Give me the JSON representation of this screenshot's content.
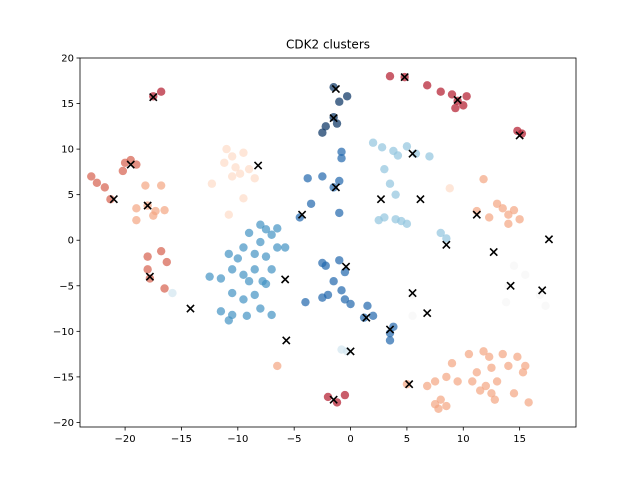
{
  "chart_data": {
    "type": "scatter",
    "title": "CDK2 clusters",
    "xlabel": "",
    "ylabel": "",
    "xlim": [
      -24,
      20
    ],
    "ylim": [
      -20.5,
      20
    ],
    "x_ticks": [
      -20,
      -15,
      -10,
      -5,
      0,
      5,
      10,
      15
    ],
    "y_ticks": [
      -20,
      -15,
      -10,
      -5,
      0,
      5,
      10,
      15,
      20
    ],
    "grid": false,
    "legend": "none",
    "point_alpha": 0.7,
    "points": [
      {
        "x": -23,
        "y": 7.0,
        "color": "#d6604d"
      },
      {
        "x": -22.5,
        "y": 6.3,
        "color": "#d6604d"
      },
      {
        "x": -21.8,
        "y": 5.8,
        "color": "#d6604d"
      },
      {
        "x": -21.3,
        "y": 4.5,
        "color": "#d6604d"
      },
      {
        "x": -20.2,
        "y": 7.6,
        "color": "#d6604d"
      },
      {
        "x": -20.0,
        "y": 8.5,
        "color": "#d6604d"
      },
      {
        "x": -19.5,
        "y": 8.8,
        "color": "#d6604d"
      },
      {
        "x": -19.0,
        "y": 8.3,
        "color": "#d6604d"
      },
      {
        "x": -19.0,
        "y": 3.5,
        "color": "#f4a582"
      },
      {
        "x": -19.0,
        "y": 2.2,
        "color": "#f4a582"
      },
      {
        "x": -18.2,
        "y": 6.0,
        "color": "#f4a582"
      },
      {
        "x": -18.0,
        "y": 3.8,
        "color": "#f4a582"
      },
      {
        "x": -17.5,
        "y": 2.7,
        "color": "#f4a582"
      },
      {
        "x": -17.3,
        "y": 3.2,
        "color": "#f4a582"
      },
      {
        "x": -16.8,
        "y": 6.0,
        "color": "#f4a582"
      },
      {
        "x": -16.5,
        "y": 3.3,
        "color": "#f4a582"
      },
      {
        "x": -18.0,
        "y": -1.8,
        "color": "#d6604d"
      },
      {
        "x": -18.0,
        "y": -3.2,
        "color": "#d6604d"
      },
      {
        "x": -17.8,
        "y": -4.2,
        "color": "#d6604d"
      },
      {
        "x": -16.8,
        "y": -1.2,
        "color": "#d6604d"
      },
      {
        "x": -16.3,
        "y": -2.4,
        "color": "#d6604d"
      },
      {
        "x": -16.5,
        "y": -5.3,
        "color": "#d6604d"
      },
      {
        "x": -17.5,
        "y": 15.8,
        "color": "#b2182b"
      },
      {
        "x": -16.8,
        "y": 16.3,
        "color": "#b2182b"
      },
      {
        "x": -11.0,
        "y": 10.0,
        "color": "#fddbc7"
      },
      {
        "x": -10.5,
        "y": 9.2,
        "color": "#fddbc7"
      },
      {
        "x": -9.5,
        "y": 9.6,
        "color": "#fddbc7"
      },
      {
        "x": -11.2,
        "y": 8.5,
        "color": "#fddbc7"
      },
      {
        "x": -10.2,
        "y": 8.0,
        "color": "#fddbc7"
      },
      {
        "x": -9.8,
        "y": 7.3,
        "color": "#fddbc7"
      },
      {
        "x": -10.5,
        "y": 7.0,
        "color": "#fddbc7"
      },
      {
        "x": -12.3,
        "y": 6.2,
        "color": "#fddbc7"
      },
      {
        "x": -9.0,
        "y": 7.8,
        "color": "#fddbc7"
      },
      {
        "x": -8.5,
        "y": 6.8,
        "color": "#fddbc7"
      },
      {
        "x": -9.5,
        "y": 4.6,
        "color": "#fddbc7"
      },
      {
        "x": -10.8,
        "y": 2.8,
        "color": "#fddbc7"
      },
      {
        "x": -8.0,
        "y": 1.7,
        "color": "#4393c3"
      },
      {
        "x": -7.5,
        "y": 1.2,
        "color": "#4393c3"
      },
      {
        "x": -7.0,
        "y": 0.6,
        "color": "#4393c3"
      },
      {
        "x": -6.5,
        "y": 1.3,
        "color": "#4393c3"
      },
      {
        "x": -9.0,
        "y": 0.8,
        "color": "#4393c3"
      },
      {
        "x": -9.5,
        "y": -0.8,
        "color": "#4393c3"
      },
      {
        "x": -10.0,
        "y": -2.0,
        "color": "#4393c3"
      },
      {
        "x": -10.8,
        "y": -1.5,
        "color": "#4393c3"
      },
      {
        "x": -11.5,
        "y": -4.2,
        "color": "#4393c3"
      },
      {
        "x": -10.5,
        "y": -3.2,
        "color": "#4393c3"
      },
      {
        "x": -9.5,
        "y": -3.8,
        "color": "#4393c3"
      },
      {
        "x": -8.5,
        "y": -1.5,
        "color": "#4393c3"
      },
      {
        "x": -8.0,
        "y": -0.2,
        "color": "#4393c3"
      },
      {
        "x": -7.5,
        "y": -1.8,
        "color": "#4393c3"
      },
      {
        "x": -6.5,
        "y": -0.8,
        "color": "#4393c3"
      },
      {
        "x": -7.0,
        "y": -3.2,
        "color": "#4393c3"
      },
      {
        "x": -7.8,
        "y": -4.5,
        "color": "#4393c3"
      },
      {
        "x": -8.5,
        "y": -3.2,
        "color": "#4393c3"
      },
      {
        "x": -9.0,
        "y": -4.5,
        "color": "#4393c3"
      },
      {
        "x": -5.8,
        "y": -0.8,
        "color": "#4393c3"
      },
      {
        "x": -10.5,
        "y": -5.8,
        "color": "#4393c3"
      },
      {
        "x": -9.5,
        "y": -6.5,
        "color": "#4393c3"
      },
      {
        "x": -8.5,
        "y": -6.0,
        "color": "#4393c3"
      },
      {
        "x": -9.2,
        "y": -8.3,
        "color": "#4393c3"
      },
      {
        "x": -10.5,
        "y": -8.2,
        "color": "#4393c3"
      },
      {
        "x": -10.8,
        "y": -8.8,
        "color": "#4393c3"
      },
      {
        "x": -8.0,
        "y": -7.5,
        "color": "#4393c3"
      },
      {
        "x": -7.0,
        "y": -8.2,
        "color": "#4393c3"
      },
      {
        "x": -7.5,
        "y": -4.8,
        "color": "#4393c3"
      },
      {
        "x": -11.5,
        "y": -7.8,
        "color": "#4393c3"
      },
      {
        "x": -12.5,
        "y": -4.0,
        "color": "#4393c3"
      },
      {
        "x": -15.8,
        "y": -5.8,
        "color": "#d1e5f0"
      },
      {
        "x": -4.5,
        "y": 2.5,
        "color": "#2166ac"
      },
      {
        "x": -3.5,
        "y": 4.0,
        "color": "#2166ac"
      },
      {
        "x": -3.8,
        "y": 6.8,
        "color": "#2166ac"
      },
      {
        "x": -2.5,
        "y": 7.0,
        "color": "#2166ac"
      },
      {
        "x": -1.0,
        "y": 6.5,
        "color": "#2166ac"
      },
      {
        "x": -0.8,
        "y": 9.7,
        "color": "#2166ac"
      },
      {
        "x": -0.8,
        "y": 9.0,
        "color": "#2166ac"
      },
      {
        "x": -1.5,
        "y": 5.8,
        "color": "#2166ac"
      },
      {
        "x": -1.0,
        "y": 3.0,
        "color": "#2166ac"
      },
      {
        "x": -2.5,
        "y": 11.8,
        "color": "#053061"
      },
      {
        "x": -2.2,
        "y": 12.5,
        "color": "#053061"
      },
      {
        "x": -1.5,
        "y": 13.5,
        "color": "#053061"
      },
      {
        "x": -1.2,
        "y": 12.8,
        "color": "#053061"
      },
      {
        "x": -1.0,
        "y": 15.2,
        "color": "#053061"
      },
      {
        "x": -0.3,
        "y": 15.8,
        "color": "#053061"
      },
      {
        "x": -1.5,
        "y": 16.8,
        "color": "#053061"
      },
      {
        "x": 2.0,
        "y": 10.7,
        "color": "#92c5de"
      },
      {
        "x": 2.8,
        "y": 10.2,
        "color": "#92c5de"
      },
      {
        "x": 3.8,
        "y": 9.8,
        "color": "#92c5de"
      },
      {
        "x": 4.2,
        "y": 9.3,
        "color": "#92c5de"
      },
      {
        "x": 5.0,
        "y": 10.3,
        "color": "#92c5de"
      },
      {
        "x": 5.8,
        "y": 9.5,
        "color": "#92c5de"
      },
      {
        "x": 7.0,
        "y": 9.2,
        "color": "#92c5de"
      },
      {
        "x": 3.0,
        "y": 7.8,
        "color": "#92c5de"
      },
      {
        "x": 3.5,
        "y": 6.2,
        "color": "#92c5de"
      },
      {
        "x": 4.0,
        "y": 5.0,
        "color": "#92c5de"
      },
      {
        "x": 2.5,
        "y": 2.2,
        "color": "#92c5de"
      },
      {
        "x": 3.0,
        "y": 2.5,
        "color": "#92c5de"
      },
      {
        "x": 4.0,
        "y": 2.3,
        "color": "#92c5de"
      },
      {
        "x": 4.5,
        "y": 2.1,
        "color": "#92c5de"
      },
      {
        "x": 5.0,
        "y": 1.8,
        "color": "#92c5de"
      },
      {
        "x": 8.0,
        "y": 0.8,
        "color": "#92c5de"
      },
      {
        "x": 8.5,
        "y": 0.2,
        "color": "#92c5de"
      },
      {
        "x": -2.5,
        "y": -2.5,
        "color": "#2166ac"
      },
      {
        "x": -2.2,
        "y": -2.8,
        "color": "#2166ac"
      },
      {
        "x": -1.0,
        "y": -2.2,
        "color": "#2166ac"
      },
      {
        "x": -0.5,
        "y": -3.5,
        "color": "#2166ac"
      },
      {
        "x": -1.5,
        "y": -4.5,
        "color": "#2166ac"
      },
      {
        "x": -0.8,
        "y": -5.5,
        "color": "#2166ac"
      },
      {
        "x": -2.5,
        "y": -6.3,
        "color": "#2166ac"
      },
      {
        "x": -2.0,
        "y": -6.0,
        "color": "#2166ac"
      },
      {
        "x": -0.5,
        "y": -6.5,
        "color": "#2166ac"
      },
      {
        "x": -4.0,
        "y": -6.8,
        "color": "#2166ac"
      },
      {
        "x": 0.0,
        "y": -7.0,
        "color": "#2166ac"
      },
      {
        "x": 1.5,
        "y": -7.2,
        "color": "#2166ac"
      },
      {
        "x": 1.2,
        "y": -8.5,
        "color": "#2166ac"
      },
      {
        "x": 2.0,
        "y": -8.3,
        "color": "#2166ac"
      },
      {
        "x": 3.5,
        "y": -10.2,
        "color": "#2166ac"
      },
      {
        "x": 3.5,
        "y": -11.0,
        "color": "#2166ac"
      },
      {
        "x": 3.8,
        "y": -9.5,
        "color": "#2166ac"
      },
      {
        "x": -0.8,
        "y": -12.0,
        "color": "#d1e5f0"
      },
      {
        "x": -0.3,
        "y": -12.2,
        "color": "#d1e5f0"
      },
      {
        "x": -2.0,
        "y": -17.2,
        "color": "#b2182b"
      },
      {
        "x": -1.2,
        "y": -17.8,
        "color": "#b2182b"
      },
      {
        "x": -0.5,
        "y": -17.0,
        "color": "#b2182b"
      },
      {
        "x": 3.5,
        "y": 18.0,
        "color": "#b2182b"
      },
      {
        "x": 4.8,
        "y": 17.9,
        "color": "#b2182b"
      },
      {
        "x": 6.8,
        "y": 17.0,
        "color": "#b2182b"
      },
      {
        "x": 8.0,
        "y": 16.3,
        "color": "#b2182b"
      },
      {
        "x": 9.0,
        "y": 16.0,
        "color": "#b2182b"
      },
      {
        "x": 9.5,
        "y": 15.3,
        "color": "#b2182b"
      },
      {
        "x": 10.3,
        "y": 15.8,
        "color": "#b2182b"
      },
      {
        "x": 10.0,
        "y": 14.8,
        "color": "#b2182b"
      },
      {
        "x": 9.3,
        "y": 14.5,
        "color": "#b2182b"
      },
      {
        "x": 14.8,
        "y": 12.0,
        "color": "#b2182b"
      },
      {
        "x": 15.2,
        "y": 11.7,
        "color": "#b2182b"
      },
      {
        "x": 8.8,
        "y": 5.7,
        "color": "#fddbc7"
      },
      {
        "x": 11.8,
        "y": 6.7,
        "color": "#f4a582"
      },
      {
        "x": 11.2,
        "y": 3.2,
        "color": "#f4a582"
      },
      {
        "x": 12.3,
        "y": 2.5,
        "color": "#f4a582"
      },
      {
        "x": 13.0,
        "y": 4.0,
        "color": "#f4a582"
      },
      {
        "x": 13.5,
        "y": 3.5,
        "color": "#f4a582"
      },
      {
        "x": 14.0,
        "y": 2.8,
        "color": "#f4a582"
      },
      {
        "x": 14.5,
        "y": 3.3,
        "color": "#f4a582"
      },
      {
        "x": 15.0,
        "y": 2.3,
        "color": "#f4a582"
      },
      {
        "x": 14.0,
        "y": 1.8,
        "color": "#f4a582"
      },
      {
        "x": 14.5,
        "y": -2.8,
        "color": "#f7f7f7"
      },
      {
        "x": 15.5,
        "y": -3.8,
        "color": "#f7f7f7"
      },
      {
        "x": 14.0,
        "y": -5.0,
        "color": "#f7f7f7"
      },
      {
        "x": 13.8,
        "y": -6.8,
        "color": "#f7f7f7"
      },
      {
        "x": 16.8,
        "y": -6.0,
        "color": "#f7f7f7"
      },
      {
        "x": 17.3,
        "y": -7.2,
        "color": "#f7f7f7"
      },
      {
        "x": 5.5,
        "y": -8.3,
        "color": "#f7f7f7"
      },
      {
        "x": 5.5,
        "y": -6.0,
        "color": "#f7f7f7"
      },
      {
        "x": 10.5,
        "y": -12.5,
        "color": "#f4a582"
      },
      {
        "x": 11.8,
        "y": -12.2,
        "color": "#f4a582"
      },
      {
        "x": 12.3,
        "y": -12.8,
        "color": "#f4a582"
      },
      {
        "x": 13.5,
        "y": -12.5,
        "color": "#f4a582"
      },
      {
        "x": 14.8,
        "y": -12.8,
        "color": "#f4a582"
      },
      {
        "x": 9.0,
        "y": -13.5,
        "color": "#f4a582"
      },
      {
        "x": 11.2,
        "y": -14.5,
        "color": "#f4a582"
      },
      {
        "x": 12.5,
        "y": -14.0,
        "color": "#f4a582"
      },
      {
        "x": 14.0,
        "y": -13.8,
        "color": "#f4a582"
      },
      {
        "x": 15.5,
        "y": -13.8,
        "color": "#f4a582"
      },
      {
        "x": 15.3,
        "y": -14.5,
        "color": "#f4a582"
      },
      {
        "x": 7.5,
        "y": -15.5,
        "color": "#f4a582"
      },
      {
        "x": 8.5,
        "y": -15.0,
        "color": "#f4a582"
      },
      {
        "x": 9.5,
        "y": -15.5,
        "color": "#f4a582"
      },
      {
        "x": 10.8,
        "y": -15.5,
        "color": "#f4a582"
      },
      {
        "x": 12.0,
        "y": -16.0,
        "color": "#f4a582"
      },
      {
        "x": 13.0,
        "y": -15.5,
        "color": "#f4a582"
      },
      {
        "x": 11.5,
        "y": -16.5,
        "color": "#f4a582"
      },
      {
        "x": 12.5,
        "y": -16.8,
        "color": "#f4a582"
      },
      {
        "x": 14.5,
        "y": -16.8,
        "color": "#f4a582"
      },
      {
        "x": 8.0,
        "y": -17.5,
        "color": "#f4a582"
      },
      {
        "x": 7.5,
        "y": -18.0,
        "color": "#f4a582"
      },
      {
        "x": 8.5,
        "y": -18.2,
        "color": "#f4a582"
      },
      {
        "x": 7.8,
        "y": -18.5,
        "color": "#f4a582"
      },
      {
        "x": 12.8,
        "y": -17.5,
        "color": "#f4a582"
      },
      {
        "x": 15.8,
        "y": -17.8,
        "color": "#f4a582"
      },
      {
        "x": 6.8,
        "y": -16.0,
        "color": "#f4a582"
      },
      {
        "x": -6.5,
        "y": -13.8,
        "color": "#f4a582"
      },
      {
        "x": 5.0,
        "y": -15.8,
        "color": "#f4a582"
      }
    ],
    "centroids": [
      {
        "x": -21.0,
        "y": 4.5
      },
      {
        "x": -19.5,
        "y": 8.3
      },
      {
        "x": -18.0,
        "y": 3.8
      },
      {
        "x": -17.5,
        "y": 15.7
      },
      {
        "x": -17.8,
        "y": -4.0
      },
      {
        "x": -14.2,
        "y": -7.5
      },
      {
        "x": -8.2,
        "y": 8.2
      },
      {
        "x": -5.8,
        "y": -4.3
      },
      {
        "x": -5.7,
        "y": -11.0
      },
      {
        "x": -4.3,
        "y": 2.8
      },
      {
        "x": -1.3,
        "y": 16.6
      },
      {
        "x": -1.5,
        "y": 13.4
      },
      {
        "x": -1.3,
        "y": 5.8
      },
      {
        "x": -0.4,
        "y": -2.9
      },
      {
        "x": 0.0,
        "y": -12.2
      },
      {
        "x": -1.5,
        "y": -17.5
      },
      {
        "x": 1.4,
        "y": -8.5
      },
      {
        "x": 2.7,
        "y": 4.5
      },
      {
        "x": 3.5,
        "y": -9.8
      },
      {
        "x": 4.8,
        "y": 17.9
      },
      {
        "x": 5.5,
        "y": 9.5
      },
      {
        "x": 6.2,
        "y": 4.5
      },
      {
        "x": 5.5,
        "y": -5.8
      },
      {
        "x": 6.8,
        "y": -8.0
      },
      {
        "x": 5.2,
        "y": -15.8
      },
      {
        "x": 8.5,
        "y": -0.5
      },
      {
        "x": 9.5,
        "y": 15.4
      },
      {
        "x": 11.2,
        "y": 2.8
      },
      {
        "x": 12.7,
        "y": -1.3
      },
      {
        "x": 15.0,
        "y": 11.5
      },
      {
        "x": 14.2,
        "y": -5.0
      },
      {
        "x": 17.0,
        "y": -5.5
      },
      {
        "x": 17.6,
        "y": 0.1
      }
    ]
  }
}
